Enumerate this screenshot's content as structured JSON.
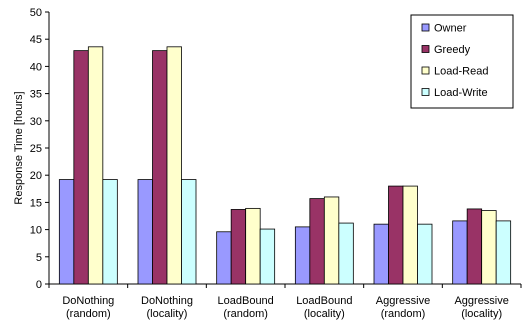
{
  "chart_data": {
    "type": "bar",
    "ylabel": "Response Time [hours]",
    "ylim": [
      0,
      50
    ],
    "ytick_step": 5,
    "grid": false,
    "legend_position": "top-right",
    "categories": [
      [
        "DoNothing",
        "(random)"
      ],
      [
        "DoNothing",
        "(locality)"
      ],
      [
        "LoadBound",
        "(random)"
      ],
      [
        "LoadBound",
        "(locality)"
      ],
      [
        "Aggressive",
        "(random)"
      ],
      [
        "Aggressive",
        "(locality)"
      ]
    ],
    "series": [
      {
        "name": "Owner",
        "color": "#9999FF",
        "values": [
          19.2,
          19.2,
          9.6,
          10.5,
          11.0,
          11.6
        ]
      },
      {
        "name": "Greedy",
        "color": "#993366",
        "values": [
          42.9,
          42.9,
          13.7,
          15.7,
          18.0,
          13.8
        ]
      },
      {
        "name": "Load-Read",
        "color": "#FFFFCC",
        "values": [
          43.6,
          43.6,
          13.9,
          16.0,
          18.0,
          13.5
        ]
      },
      {
        "name": "Load-Write",
        "color": "#CCFFFF",
        "values": [
          19.2,
          19.2,
          10.1,
          11.2,
          11.0,
          11.6
        ]
      }
    ]
  }
}
